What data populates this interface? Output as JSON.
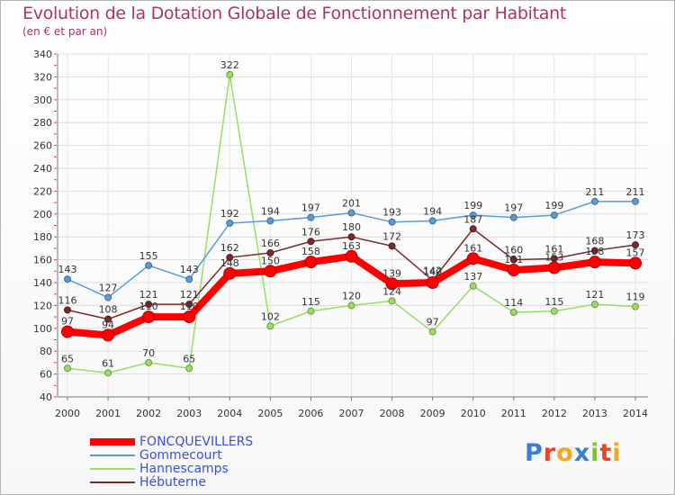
{
  "chart_data": {
    "type": "line",
    "title": "Evolution de la Dotation Globale de Fonctionnement par Habitant",
    "subtitle": "(en € et par an)",
    "x": [
      "2000",
      "2001",
      "2002",
      "2003",
      "2004",
      "2005",
      "2006",
      "2007",
      "2008",
      "2009",
      "2010",
      "2011",
      "2012",
      "2013",
      "2014"
    ],
    "ylim": [
      40,
      340
    ],
    "yticks": [
      40,
      60,
      80,
      100,
      120,
      140,
      160,
      180,
      200,
      220,
      240,
      260,
      280,
      300,
      320,
      340
    ],
    "series": [
      {
        "name": "FONCQUEVILLERS",
        "color": "#ff0000",
        "values": [
          97,
          94,
          110,
          110,
          148,
          150,
          158,
          163,
          139,
          140,
          161,
          151,
          153,
          158,
          157
        ]
      },
      {
        "name": "Gommecourt",
        "color": "#5b9bd5",
        "values": [
          143,
          127,
          155,
          143,
          192,
          194,
          197,
          201,
          193,
          194,
          199,
          197,
          199,
          211,
          211
        ]
      },
      {
        "name": "Hannescamps",
        "color": "#99dd66",
        "values": [
          65,
          61,
          70,
          65,
          322,
          102,
          115,
          120,
          124,
          97,
          137,
          114,
          115,
          121,
          119
        ]
      },
      {
        "name": "Hébuterne",
        "color": "#7a2a2a",
        "values": [
          116,
          108,
          121,
          121,
          162,
          166,
          176,
          180,
          172,
          142,
          187,
          160,
          161,
          168,
          173
        ]
      }
    ]
  },
  "branding": {
    "logo_letters": [
      "P",
      "r",
      "o",
      "x",
      "i",
      "t",
      "i"
    ],
    "logo_colors": [
      "#3a7fd5",
      "#e8452c",
      "#f5a623",
      "#3a7fd5",
      "#7cc242",
      "#e8452c",
      "#f5a623"
    ]
  }
}
